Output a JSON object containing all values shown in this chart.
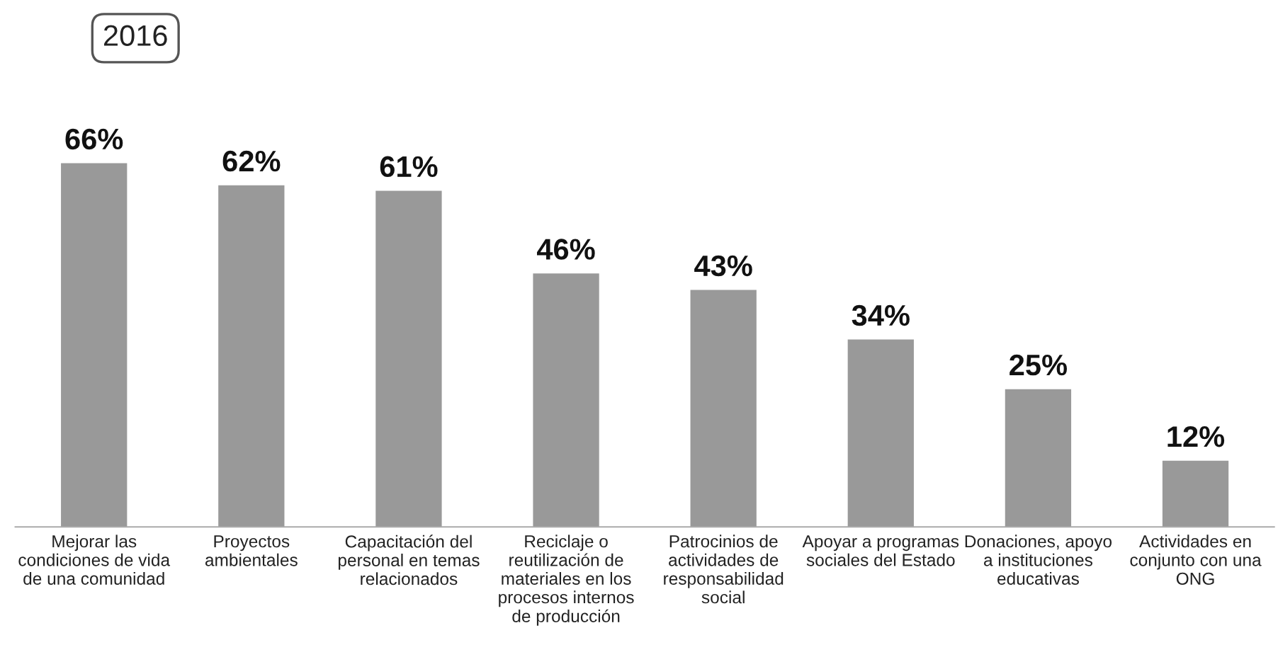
{
  "chart_data": {
    "type": "bar",
    "title": "2016",
    "categories": [
      "Mejorar las\ncondiciones de vida\nde una comunidad",
      "Proyectos\nambientales",
      "Capacitación del\npersonal en temas\nrelacionados",
      "Reciclaje o\nreutilización de\nmateriales en los\nprocesos internos\nde producción",
      "Patrocinios de\nactividades de\nresponsabilidad\nsocial",
      "Apoyar a programas\nsociales del Estado",
      "Donaciones, apoyo\na instituciones\neducativas",
      "Actividades en\nconjunto con una\nONG"
    ],
    "values": [
      66,
      62,
      61,
      46,
      43,
      34,
      25,
      12
    ],
    "value_labels": [
      "66%",
      "62%",
      "61%",
      "46%",
      "43%",
      "34%",
      "25%",
      "12%"
    ],
    "color": "#999999",
    "grid": false,
    "legend": false
  }
}
